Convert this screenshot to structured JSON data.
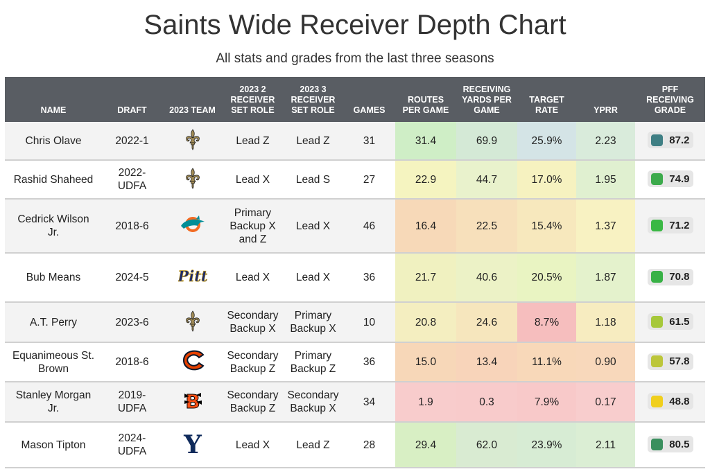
{
  "title": "Saints Wide Receiver Depth Chart",
  "subtitle": "All stats and grades from the last three seasons",
  "chart_data": {
    "type": "table",
    "columns": [
      {
        "key": "name",
        "label": "NAME"
      },
      {
        "key": "draft",
        "label": "DRAFT"
      },
      {
        "key": "team",
        "label": "2023 TEAM"
      },
      {
        "key": "role2",
        "label": "2023 2 RECEIVER SET ROLE"
      },
      {
        "key": "role3",
        "label": "2023 3 RECEIVER SET ROLE"
      },
      {
        "key": "games",
        "label": "GAMES"
      },
      {
        "key": "routes",
        "label": "ROUTES PER GAME"
      },
      {
        "key": "yards",
        "label": "RECEIVING YARDS PER GAME"
      },
      {
        "key": "target",
        "label": "TARGET RATE"
      },
      {
        "key": "yprr",
        "label": "YPRR"
      },
      {
        "key": "grade",
        "label": "PFF RECEIVING GRADE"
      }
    ],
    "rows": [
      {
        "name": "Chris Olave",
        "draft": "2022-1",
        "team": "saints-logo",
        "role2": "Lead Z",
        "role3": "Lead Z",
        "games": "31",
        "routes": "31.4",
        "yards": "69.9",
        "target": "25.9%",
        "yprr": "2.23",
        "grade": "87.2"
      },
      {
        "name": "Rashid Shaheed",
        "draft": "2022-UDFA",
        "team": "saints-logo",
        "role2": "Lead X",
        "role3": "Lead S",
        "games": "27",
        "routes": "22.9",
        "yards": "44.7",
        "target": "17.0%",
        "yprr": "1.95",
        "grade": "74.9"
      },
      {
        "name": "Cedrick Wilson Jr.",
        "draft": "2018-6",
        "team": "dolphins-logo",
        "role2": "Primary Backup X and Z",
        "role3": "Lead X",
        "games": "46",
        "routes": "16.4",
        "yards": "22.5",
        "target": "15.4%",
        "yprr": "1.37",
        "grade": "71.2"
      },
      {
        "name": "Bub Means",
        "draft": "2024-5",
        "team": "pitt-logo",
        "role2": "Lead X",
        "role3": "Lead X",
        "games": "36",
        "routes": "21.7",
        "yards": "40.6",
        "target": "20.5%",
        "yprr": "1.87",
        "grade": "70.8"
      },
      {
        "name": "A.T. Perry",
        "draft": "2023-6",
        "team": "saints-logo",
        "role2": "Secondary Backup X",
        "role3": "Primary Backup X",
        "games": "10",
        "routes": "20.8",
        "yards": "24.6",
        "target": "8.7%",
        "yprr": "1.18",
        "grade": "61.5"
      },
      {
        "name": "Equanimeous St. Brown",
        "draft": "2018-6",
        "team": "bears-logo",
        "role2": "Secondary Backup Z",
        "role3": "Primary Backup Z",
        "games": "36",
        "routes": "15.0",
        "yards": "13.4",
        "target": "11.1%",
        "yprr": "0.90",
        "grade": "57.8"
      },
      {
        "name": "Stanley Morgan Jr.",
        "draft": "2019-UDFA",
        "team": "bengals-logo",
        "role2": "Secondary Backup Z",
        "role3": "Secondary Backup X",
        "games": "34",
        "routes": "1.9",
        "yards": "0.3",
        "target": "7.9%",
        "yprr": "0.17",
        "grade": "48.8"
      },
      {
        "name": "Mason Tipton",
        "draft": "2024-UDFA",
        "team": "yale-logo",
        "role2": "Lead X",
        "role3": "Lead Z",
        "games": "28",
        "routes": "29.4",
        "yards": "62.0",
        "target": "23.9%",
        "yprr": "2.11",
        "grade": "80.5"
      }
    ],
    "cell_colors": {
      "routes": [
        "#cfeec6",
        "#f5f4c0",
        "#f7d9b8",
        "#f0f1c0",
        "#f4eec0",
        "#f7d7b8",
        "#f8cccc",
        "#d8efc4"
      ],
      "yards": [
        "#d4e9d6",
        "#e9f2cc",
        "#f7e0bb",
        "#ecf2c6",
        "#f6e6bd",
        "#f8d4ba",
        "#f8cbcb",
        "#d9ebd2"
      ],
      "target": [
        "#d4e4e6",
        "#f6f2c0",
        "#f7e8bd",
        "#e9f4c2",
        "#f6bebe",
        "#f8d8b9",
        "#f8c9c9",
        "#d7ecd4"
      ],
      "yprr": [
        "#d9ebdb",
        "#e0f0d0",
        "#f8f2c2",
        "#e4f2cc",
        "#f7ecc0",
        "#f8d8bb",
        "#f8cdcd",
        "#dbeed4"
      ],
      "grade": [
        "#3f7f84",
        "#3caa4c",
        "#3ab844",
        "#38b146",
        "#a6c83a",
        "#bcc63a",
        "#f0cf1c",
        "#3a8f5e"
      ]
    }
  }
}
